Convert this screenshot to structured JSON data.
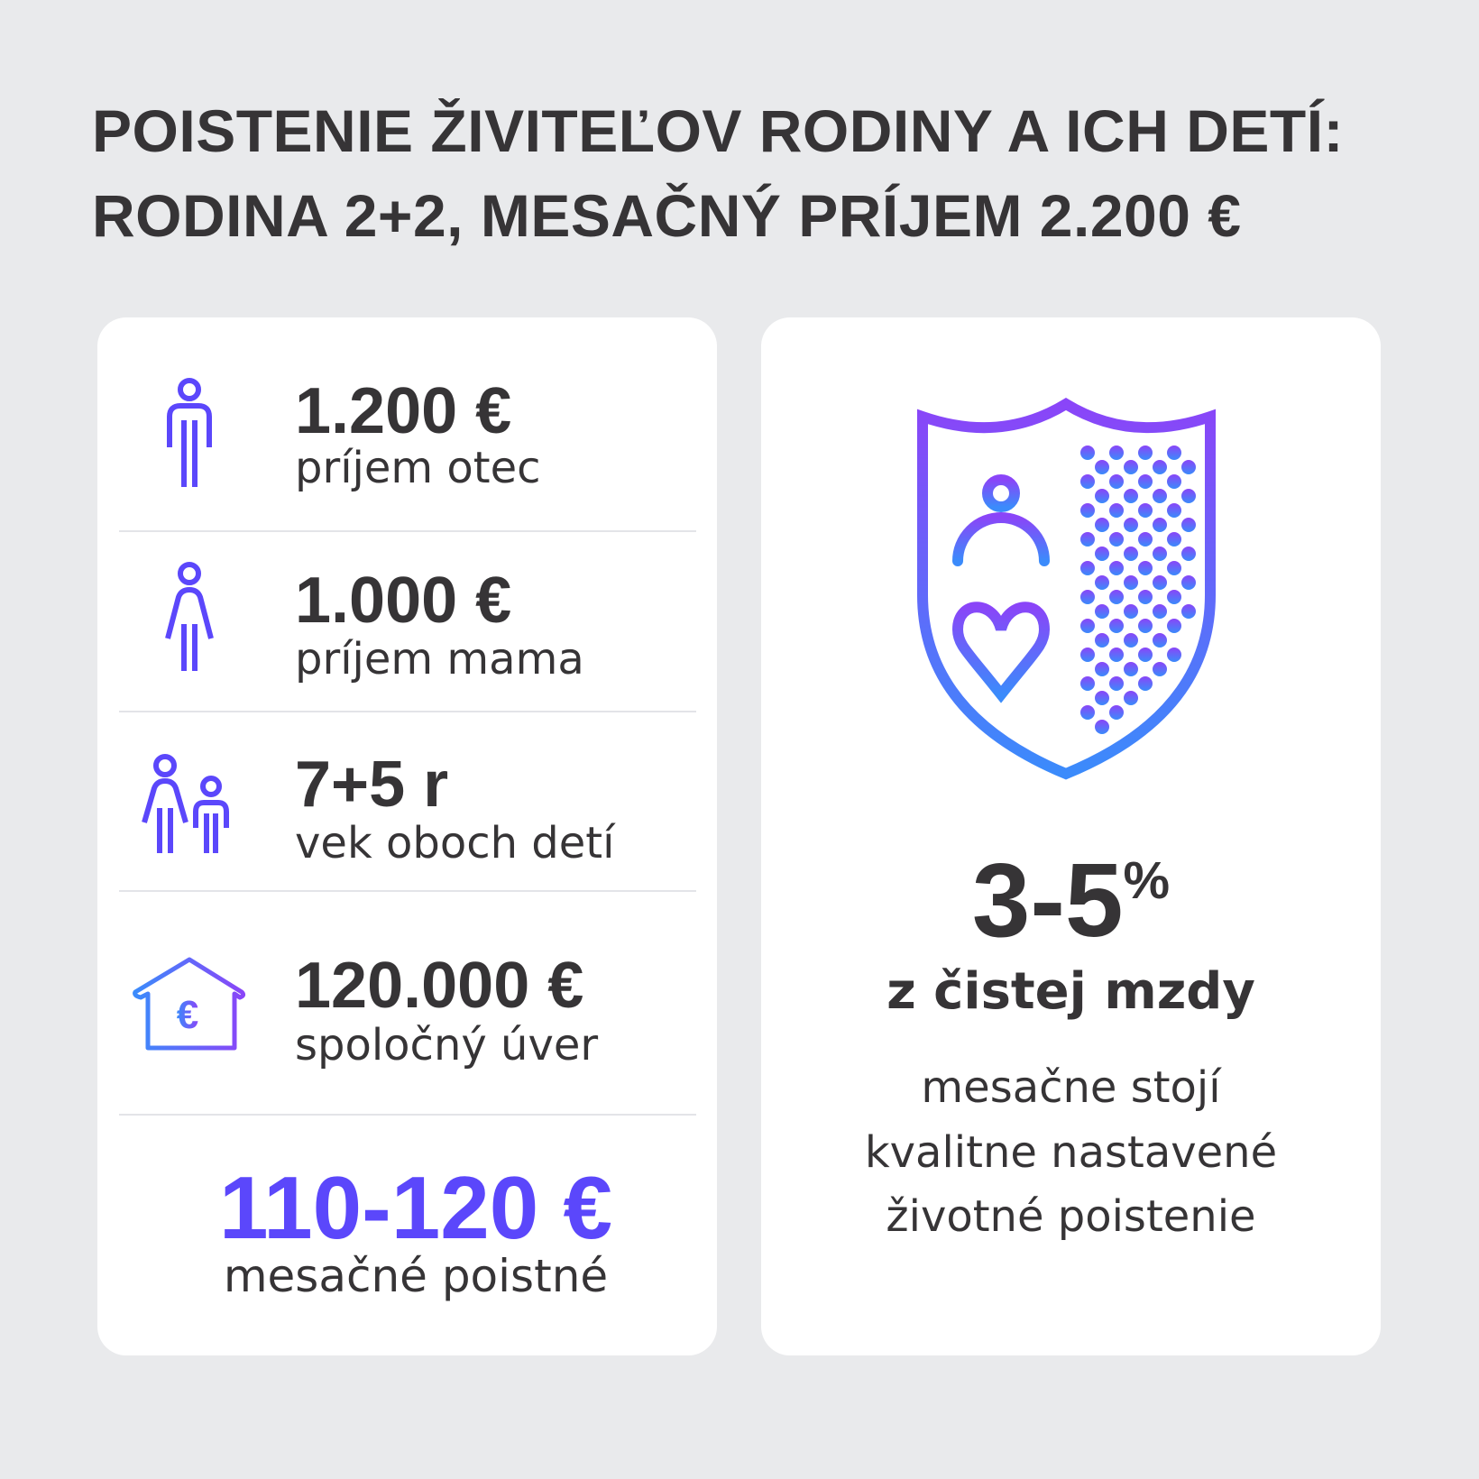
{
  "title": {
    "line1": "POISTENIE ŽIVITEĽOV RODINY A ICH DETÍ:",
    "line2": "RODINA 2+2, MESAČNÝ PRÍJEM 2.200 €"
  },
  "left_card": {
    "rows": [
      {
        "icon": "man-icon",
        "value": "1.200 €",
        "label": "príjem otec"
      },
      {
        "icon": "woman-icon",
        "value": "1.000 €",
        "label": "príjem mama"
      },
      {
        "icon": "children-icon",
        "value": "7+5 r",
        "label": "vek oboch detí"
      },
      {
        "icon": "house-euro-icon",
        "value": "120.000 €",
        "label": "spoločný úver"
      }
    ],
    "premium": {
      "value": "110-120 €",
      "label": "mesačné poistné"
    }
  },
  "right_card": {
    "icon": "shield-icon",
    "range": "3-5",
    "percent": "%",
    "subtitle": "z čistej mzdy",
    "lines": [
      "mesačne stojí",
      "kvalitne nastavené",
      "životné poistenie"
    ]
  },
  "colors": {
    "background": "#e9eaec",
    "text": "#363436",
    "accent": "#5b47fb",
    "gradient_top": "#8a45f8",
    "gradient_bottom": "#3b8bfb"
  }
}
